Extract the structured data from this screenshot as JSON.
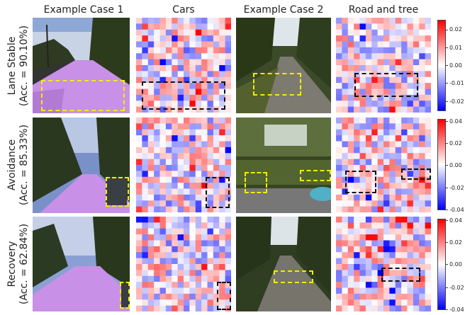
{
  "columns": [
    "Example Case 1",
    "Cars",
    "Example Case 2",
    "Road and tree"
  ],
  "rows": [
    {
      "name": "Lane Stable",
      "acc": "(Acc. = 90.10%)",
      "colorbar": {
        "ticks": [
          "0.02",
          "0.01",
          "0.00",
          "-0.01",
          "-0.02"
        ]
      }
    },
    {
      "name": "Avoidance",
      "acc": "(Acc. = 85.33%)",
      "colorbar": {
        "ticks": [
          "0.04",
          "0.02",
          "0.00",
          "-0.02",
          "-0.04"
        ]
      }
    },
    {
      "name": "Recovery",
      "acc": "(Acc. = 62.84%)",
      "colorbar": {
        "ticks": [
          "0.04",
          "0.02",
          "0.00",
          "-0.02",
          "-0.04"
        ]
      }
    }
  ],
  "colors": {
    "highlight_box": "#f2ee00",
    "attention_box": "#111111",
    "positive": "#ff0000",
    "negative": "#0000ff"
  }
}
